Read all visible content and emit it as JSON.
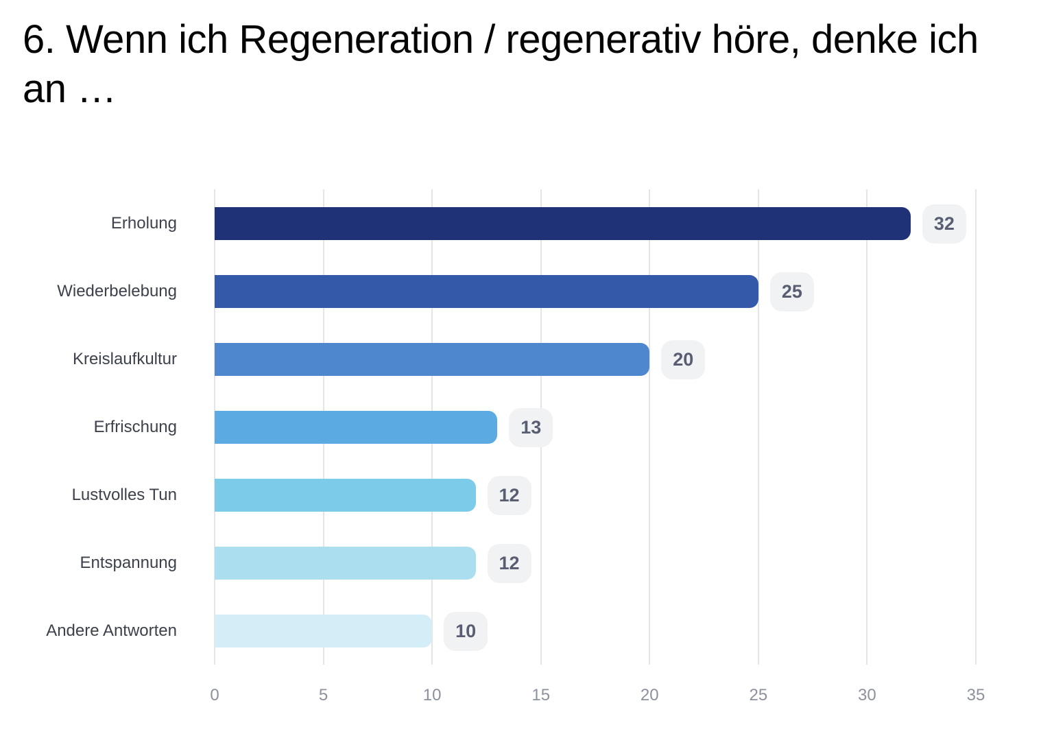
{
  "chart_data": {
    "type": "bar",
    "orientation": "horizontal",
    "title": "6. Wenn ich Regeneration / regenerativ höre, denke ich an …",
    "categories": [
      "Erholung",
      "Wiederbelebung",
      "Kreislaufkultur",
      "Erfrischung",
      "Lustvolles Tun",
      "Entspannung",
      "Andere Antworten"
    ],
    "values": [
      32,
      25,
      20,
      13,
      12,
      12,
      10
    ],
    "bar_colors": [
      "#1f3278",
      "#3359a8",
      "#4e87ce",
      "#5babe2",
      "#7ccbe9",
      "#abdff0",
      "#d4eef8"
    ],
    "xlabel": "",
    "ylabel": "",
    "xlim": [
      0,
      35
    ],
    "x_ticks": [
      0,
      5,
      10,
      15,
      20,
      25,
      30,
      35
    ],
    "grid": "vertical",
    "legend": "none",
    "value_badge_bg": "#f1f2f4",
    "value_badge_text_color": "#595d72",
    "gridline_color": "#e3e5e9",
    "category_label_color": "#3d414b",
    "tick_label_color": "#8d919c"
  }
}
